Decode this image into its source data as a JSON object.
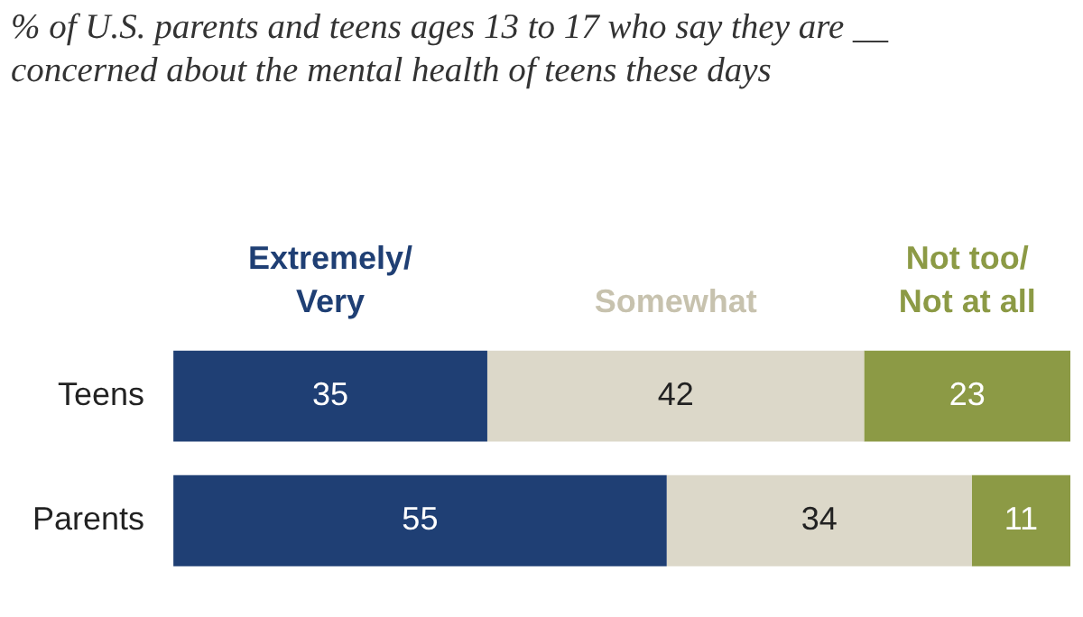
{
  "chart_data": {
    "type": "bar",
    "orientation": "horizontal",
    "stacked": true,
    "title": "% of U.S. parents and teens ages 13 to 17 who say they are __ concerned about the mental health of teens these days",
    "categories": [
      "Teens",
      "Parents"
    ],
    "series": [
      {
        "name": "Extremely/Very",
        "color": "#1f3f74",
        "values": [
          35,
          55
        ]
      },
      {
        "name": "Somewhat",
        "color": "#dcd8c9",
        "values": [
          42,
          34
        ]
      },
      {
        "name": "Not too/Not at all",
        "color": "#8c9a45",
        "values": [
          23,
          11
        ]
      }
    ],
    "xlim": [
      0,
      100
    ],
    "tick_labels": "y",
    "data_labels": true,
    "legend": "top"
  }
}
